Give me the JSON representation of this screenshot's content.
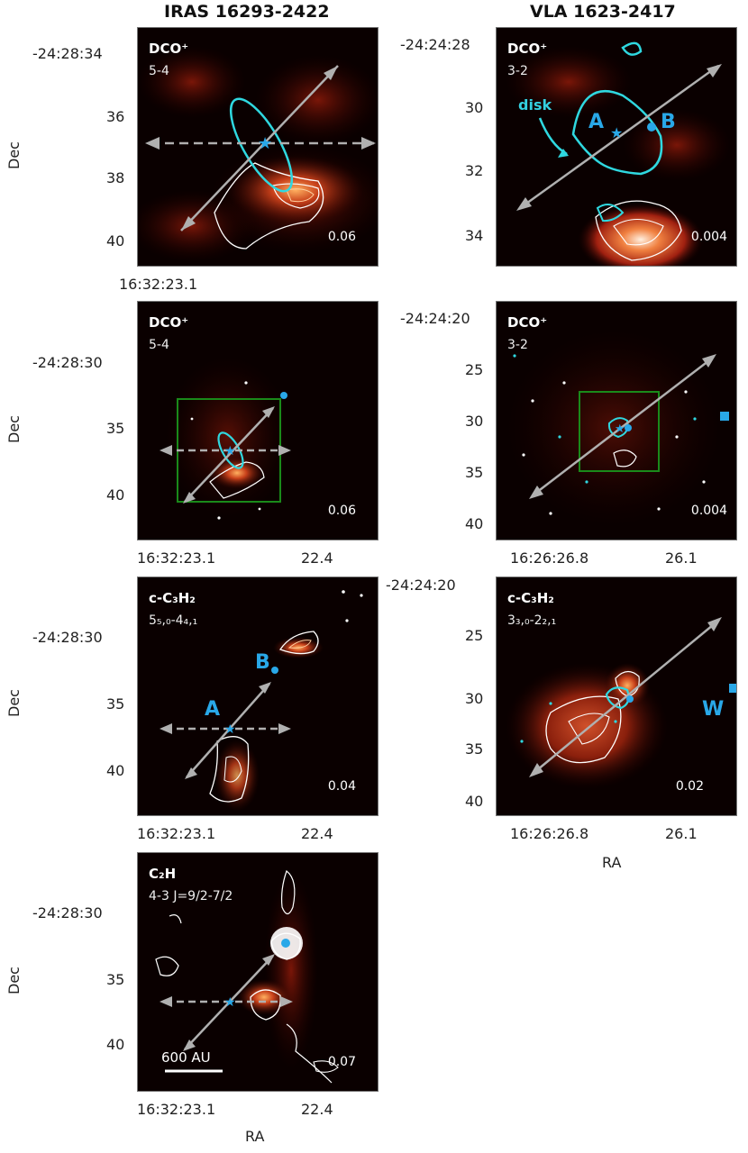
{
  "columns": {
    "left": "IRAS 16293-2422",
    "right": "VLA 1623-2417"
  },
  "axes": {
    "ylabel": "Dec",
    "xlabel": "RA"
  },
  "colors": {
    "colormap_low": "#0a0000",
    "colormap_mid": "#8b1a0a",
    "colormap_high": "#ffb060",
    "outflow_arrow": "#b0b0b0",
    "disk_contour": "#2fd8e0",
    "source_marker": "#29a8e8",
    "zoom_box": "#1a8a1a",
    "emission_contour": "#ffffff"
  },
  "panels": [
    {
      "id": "iras-dco-zoom",
      "molecule": "DCO⁺",
      "transition": "5-4",
      "rms": "0.06",
      "dec_ticks": [
        "-24:28:34",
        "36",
        "38",
        "40"
      ],
      "ra_ticks": [
        "16:32:23.1"
      ],
      "show_xlabel": false
    },
    {
      "id": "vla-dco-zoom",
      "molecule": "DCO⁺",
      "transition": "3-2",
      "rms": "0.004",
      "dec_ticks": [
        "-24:24:28",
        "30",
        "32",
        "34"
      ],
      "ra_ticks": [],
      "annotation": "disk",
      "sources": [
        "A",
        "B"
      ]
    },
    {
      "id": "iras-dco-wide",
      "molecule": "DCO⁺",
      "transition": "5-4",
      "rms": "0.06",
      "dec_ticks": [
        "-24:28:30",
        "35",
        "40"
      ],
      "ra_ticks": [
        "16:32:23.1",
        "22.4"
      ]
    },
    {
      "id": "vla-dco-wide",
      "molecule": "DCO⁺",
      "transition": "3-2",
      "rms": "0.004",
      "dec_ticks": [
        "-24:24:20",
        "25",
        "30",
        "35",
        "40"
      ],
      "ra_ticks": [
        "16:26:26.8",
        "26.1"
      ]
    },
    {
      "id": "iras-c3h2",
      "molecule": "c-C₃H₂",
      "transition": "5₅,₀-4₄,₁",
      "rms": "0.04",
      "dec_ticks": [
        "-24:28:30",
        "35",
        "40"
      ],
      "ra_ticks": [
        "16:32:23.1",
        "22.4"
      ],
      "sources": [
        "A",
        "B"
      ]
    },
    {
      "id": "vla-c3h2",
      "molecule": "c-C₃H₂",
      "transition": "3₃,₀-2₂,₁",
      "rms": "0.02",
      "dec_ticks": [
        "-24:24:20",
        "25",
        "30",
        "35",
        "40"
      ],
      "ra_ticks": [
        "16:26:26.8",
        "26.1"
      ],
      "sources": [
        "W"
      ]
    },
    {
      "id": "iras-c2h",
      "molecule": "C₂H",
      "transition": "4-3 J=9/2-7/2",
      "rms": "0.07",
      "dec_ticks": [
        "-24:28:30",
        "35",
        "40"
      ],
      "ra_ticks": [
        "16:32:23.1",
        "22.4"
      ],
      "scalebar": "600 AU"
    }
  ],
  "chart_data": [
    {
      "type": "heatmap",
      "title": "IRAS 16293-2422 DCO⁺ 5-4",
      "xlabel": "",
      "ylabel": "Dec",
      "y_ticks": [
        "-24:28:34",
        "36",
        "38",
        "40"
      ],
      "x_ticks": [
        "16:32:23.1"
      ],
      "rms": 0.06
    },
    {
      "type": "heatmap",
      "title": "VLA 1623-2417 DCO⁺ 3-2",
      "xlabel": "",
      "ylabel": "",
      "y_ticks": [
        "-24:24:28",
        "30",
        "32",
        "34"
      ],
      "x_ticks": [],
      "rms": 0.004
    },
    {
      "type": "heatmap",
      "title": "IRAS 16293-2422 DCO⁺ 5-4",
      "xlabel": "",
      "ylabel": "Dec",
      "y_ticks": [
        "-24:28:30",
        "35",
        "40"
      ],
      "x_ticks": [
        "16:32:23.1",
        "22.4"
      ],
      "rms": 0.06
    },
    {
      "type": "heatmap",
      "title": "VLA 1623-2417 DCO⁺ 3-2",
      "xlabel": "",
      "ylabel": "",
      "y_ticks": [
        "-24:24:20",
        "25",
        "30",
        "35",
        "40"
      ],
      "x_ticks": [
        "16:26:26.8",
        "26.1"
      ],
      "rms": 0.004
    },
    {
      "type": "heatmap",
      "title": "IRAS 16293-2422 c-C₃H₂",
      "xlabel": "",
      "ylabel": "Dec",
      "y_ticks": [
        "-24:28:30",
        "35",
        "40"
      ],
      "x_ticks": [
        "16:32:23.1",
        "22.4"
      ],
      "rms": 0.04
    },
    {
      "type": "heatmap",
      "title": "VLA 1623-2417 c-C₃H₂",
      "xlabel": "RA",
      "ylabel": "",
      "y_ticks": [
        "-24:24:20",
        "25",
        "30",
        "35",
        "40"
      ],
      "x_ticks": [
        "16:26:26.8",
        "26.1"
      ],
      "rms": 0.02
    },
    {
      "type": "heatmap",
      "title": "IRAS 16293-2422 C₂H",
      "xlabel": "RA",
      "ylabel": "Dec",
      "y_ticks": [
        "-24:28:30",
        "35",
        "40"
      ],
      "x_ticks": [
        "16:32:23.1",
        "22.4"
      ],
      "rms": 0.07
    }
  ]
}
